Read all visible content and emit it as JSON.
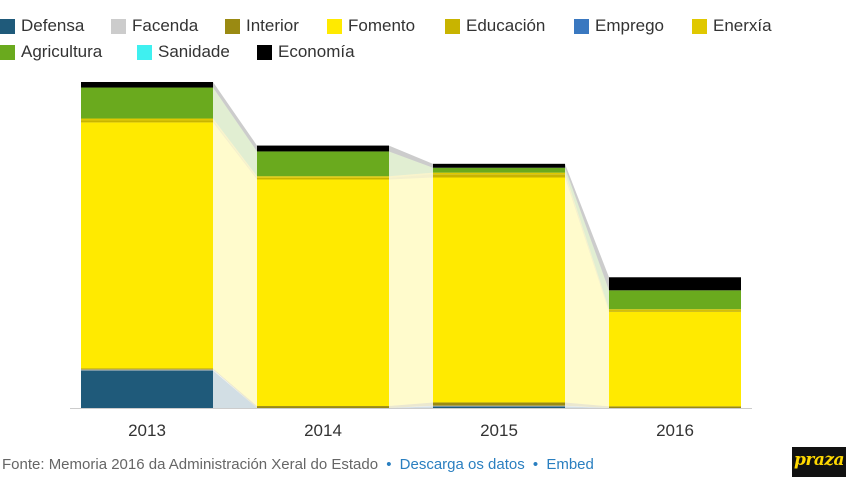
{
  "legend": [
    {
      "label": "Defensa",
      "color": "#1f5a7a"
    },
    {
      "label": "Facenda",
      "color": "#cccccc"
    },
    {
      "label": "Interior",
      "color": "#9a8a12"
    },
    {
      "label": "Fomento",
      "color": "#ffea00"
    },
    {
      "label": "Educación",
      "color": "#c8b400"
    },
    {
      "label": "Emprego",
      "color": "#3a78c0"
    },
    {
      "label": "Enerxía",
      "color": "#e0c800"
    },
    {
      "label": "Agricultura",
      "color": "#6aaa1e"
    },
    {
      "label": "Sanidade",
      "color": "#3ff0f0"
    },
    {
      "label": "Economía",
      "color": "#000000"
    }
  ],
  "chart_data": {
    "type": "bar",
    "stacked": true,
    "categories": [
      "2013",
      "2014",
      "2015",
      "2016"
    ],
    "ylim": [
      0,
      100
    ],
    "series": [
      {
        "name": "Defensa",
        "values": [
          11.5,
          0,
          0.5,
          0
        ]
      },
      {
        "name": "Facenda",
        "values": [
          0.3,
          0,
          0.2,
          0
        ]
      },
      {
        "name": "Interior",
        "values": [
          0.3,
          0.6,
          1.0,
          0.5
        ]
      },
      {
        "name": "Fomento",
        "values": [
          75.5,
          69.5,
          69.0,
          29.0
        ]
      },
      {
        "name": "Educación",
        "values": [
          0.6,
          0.5,
          1.0,
          0.4
        ]
      },
      {
        "name": "Emprego",
        "values": [
          0,
          0,
          0,
          0
        ]
      },
      {
        "name": "Enerxía",
        "values": [
          0.6,
          0.5,
          0.5,
          0.4
        ]
      },
      {
        "name": "Agricultura",
        "values": [
          9.5,
          7.6,
          1.5,
          5.8
        ]
      },
      {
        "name": "Sanidade",
        "values": [
          0,
          0,
          0,
          0
        ]
      },
      {
        "name": "Economía",
        "values": [
          1.7,
          1.8,
          1.2,
          4.0
        ]
      }
    ]
  },
  "footer": {
    "source": "Fonte: Memoria 2016 da Administración Xeral do Estado",
    "separator": "•",
    "download_label": "Descarga os datos",
    "embed_label": "Embed"
  },
  "logo": {
    "text": "praza"
  }
}
